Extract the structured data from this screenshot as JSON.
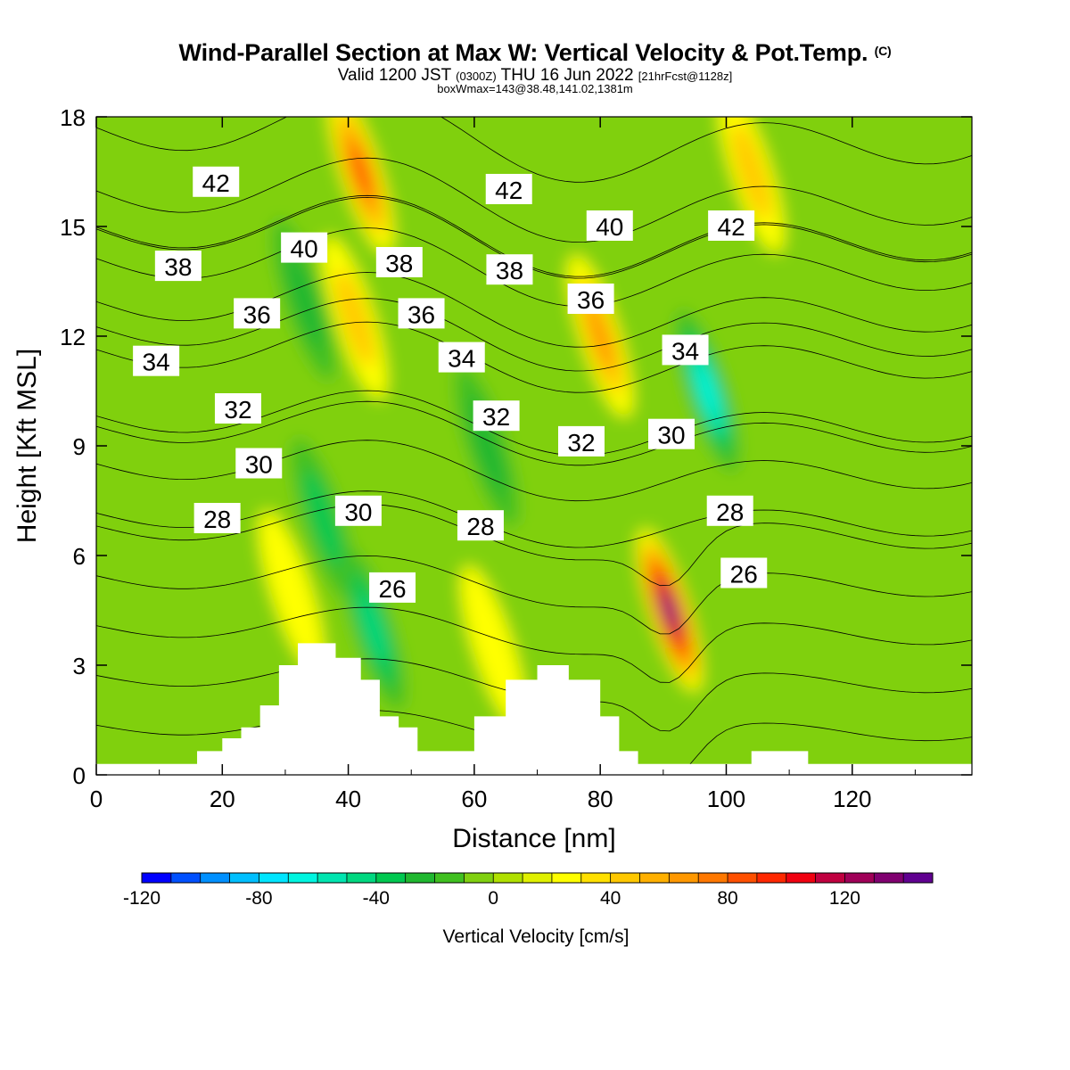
{
  "header": {
    "title": "Wind-Parallel Section at Max W: Vertical Velocity & Pot.Temp.",
    "title_mark": "(C)",
    "valid_pre": "Valid 1200 JST",
    "valid_z": "(0300Z)",
    "valid_date": "THU 16 Jun 2022",
    "valid_fcst": "[21hrFcst@1128z]",
    "boxinfo": "boxWmax=143@38.48,141.02,1381m"
  },
  "chart_data": {
    "type": "heatmap",
    "title": "Wind-Parallel Section at Max W: Vertical Velocity & Pot.Temp.",
    "xlabel": "Distance [nm]",
    "ylabel": "Height [Kft MSL]",
    "xlim": [
      0,
      139
    ],
    "ylim": [
      0,
      18
    ],
    "xticks": [
      "0",
      "20",
      "40",
      "60",
      "80",
      "100",
      "120"
    ],
    "yticks": [
      "0",
      "3",
      "6",
      "9",
      "12",
      "15",
      "18"
    ],
    "colorbar": {
      "label": "Vertical Velocity [cm/s]",
      "min": -120,
      "max": 150,
      "step": 10,
      "tick_labels": [
        "-120",
        "-80",
        "-40",
        "0",
        "40",
        "80",
        "120"
      ],
      "colors": [
        "#0000ff",
        "#0050ff",
        "#0090ff",
        "#00bfff",
        "#00e5ff",
        "#00f5e0",
        "#00e5b0",
        "#00d880",
        "#00c850",
        "#20b830",
        "#40c020",
        "#80d010",
        "#b0e000",
        "#e0f000",
        "#ffff00",
        "#ffe000",
        "#ffc800",
        "#ffb000",
        "#ff9800",
        "#ff7800",
        "#ff5000",
        "#ff2800",
        "#f00010",
        "#c00040",
        "#a00058",
        "#800070",
        "#600090"
      ]
    },
    "vertical_velocity": {
      "background_cm_s": -5,
      "features": [
        {
          "x": 42,
          "y": 16.5,
          "w_cm_s": 80
        },
        {
          "x": 41,
          "y": 12.5,
          "w_cm_s": 40
        },
        {
          "x": 33,
          "y": 13,
          "w_cm_s": -30
        },
        {
          "x": 36,
          "y": 7,
          "w_cm_s": -40
        },
        {
          "x": 44,
          "y": 4,
          "w_cm_s": -50
        },
        {
          "x": 62,
          "y": 9,
          "w_cm_s": -30
        },
        {
          "x": 80,
          "y": 12,
          "w_cm_s": 60
        },
        {
          "x": 91,
          "y": 4.5,
          "w_cm_s": 145
        },
        {
          "x": 97,
          "y": 10.5,
          "w_cm_s": -70
        },
        {
          "x": 104,
          "y": 16.5,
          "w_cm_s": 40
        },
        {
          "x": 31,
          "y": 5,
          "w_cm_s": 25
        },
        {
          "x": 63,
          "y": 3.5,
          "w_cm_s": 25
        }
      ]
    },
    "potential_temperature": {
      "contour_interval_C": 1,
      "labels": [
        {
          "value": "42",
          "x": 19,
          "y": 16.2
        },
        {
          "value": "40",
          "x": 33,
          "y": 14.4
        },
        {
          "value": "38",
          "x": 13,
          "y": 13.9
        },
        {
          "value": "36",
          "x": 25.5,
          "y": 12.6
        },
        {
          "value": "34",
          "x": 9.5,
          "y": 11.3
        },
        {
          "value": "32",
          "x": 22.5,
          "y": 10.0
        },
        {
          "value": "30",
          "x": 25.8,
          "y": 8.5
        },
        {
          "value": "28",
          "x": 19.2,
          "y": 7.0
        },
        {
          "value": "30",
          "x": 41.6,
          "y": 7.2
        },
        {
          "value": "26",
          "x": 47,
          "y": 5.1
        },
        {
          "value": "38",
          "x": 48.1,
          "y": 14.0
        },
        {
          "value": "36",
          "x": 51.6,
          "y": 12.6
        },
        {
          "value": "34",
          "x": 58,
          "y": 11.4
        },
        {
          "value": "32",
          "x": 63.5,
          "y": 9.8
        },
        {
          "value": "28",
          "x": 61,
          "y": 6.8
        },
        {
          "value": "42",
          "x": 65.5,
          "y": 16.0
        },
        {
          "value": "38",
          "x": 65.6,
          "y": 13.8
        },
        {
          "value": "36",
          "x": 78.5,
          "y": 13.0
        },
        {
          "value": "32",
          "x": 77,
          "y": 9.1
        },
        {
          "value": "40",
          "x": 81.5,
          "y": 15.0
        },
        {
          "value": "30",
          "x": 91.3,
          "y": 9.3
        },
        {
          "value": "34",
          "x": 93.5,
          "y": 11.6
        },
        {
          "value": "28",
          "x": 100.6,
          "y": 7.2
        },
        {
          "value": "26",
          "x": 102.8,
          "y": 5.5
        },
        {
          "value": "42",
          "x": 100.8,
          "y": 15.0
        }
      ]
    },
    "terrain": {
      "x_nm": [
        0,
        16,
        16,
        20,
        20,
        23,
        23,
        26,
        26,
        29,
        29,
        32,
        32,
        35,
        35,
        38,
        38,
        42,
        42,
        45,
        45,
        48,
        48,
        51,
        51,
        55,
        55,
        60,
        60,
        65,
        65,
        70,
        70,
        75,
        75,
        80,
        80,
        83,
        83,
        86,
        86,
        104,
        104,
        113,
        113,
        139
      ],
      "h_kft": [
        0.3,
        0.3,
        0.65,
        0.65,
        1.0,
        1.0,
        1.3,
        1.3,
        1.9,
        1.9,
        3.0,
        3.0,
        3.6,
        3.6,
        3.6,
        3.6,
        3.2,
        3.2,
        2.6,
        2.6,
        1.6,
        1.6,
        1.3,
        1.3,
        0.65,
        0.65,
        0.65,
        0.65,
        1.6,
        1.6,
        2.6,
        2.6,
        3.0,
        3.0,
        2.6,
        2.6,
        1.6,
        1.6,
        0.65,
        0.65,
        0.3,
        0.3,
        0.65,
        0.65,
        0.3,
        0.3
      ]
    }
  }
}
